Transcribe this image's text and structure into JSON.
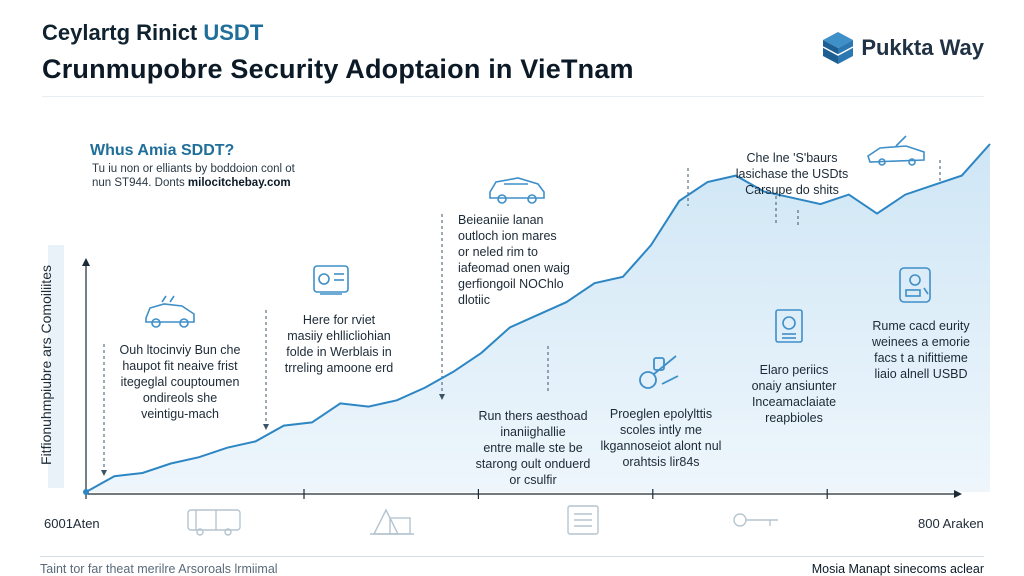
{
  "header": {
    "title_line1_prefix": "Ceylartg Rinict ",
    "title_line1_accent": "USDT",
    "title_line2": "Crunmupobre Security Adoptaion in VieTnam",
    "logo_text": "Pukkta Way"
  },
  "intro": {
    "title": "Whus Amia SDDT?",
    "line1": "Tu iu non or elliants by boddoion conl ot",
    "line2_prefix": "nun ST944. Donts ",
    "line2_bold": "milocitchebay.com"
  },
  "annotations": {
    "a1": [
      "Ouh ltocinviy Bun che",
      "haupot fit neaive frist",
      "itegeglal couptoumen",
      "ondireols she",
      "veintigu-mach"
    ],
    "a2": [
      "Here for rviet",
      "masiiy ehllicliohian",
      "folde in Werblais in",
      "trreling amoone erd"
    ],
    "a3": [
      "Beieaniie lanan",
      "outloch ion mares",
      "or neled rim to",
      "iafeomad onen waig",
      "gerfiongoil NOChlo",
      "dlotiic"
    ],
    "a4": [
      "Che lne 'S'baurs",
      "lasichase the USDts",
      "Carsupe do shits"
    ],
    "a5": [
      "Run thers aesthoad",
      "inaniighallie",
      "entre malle ste be",
      "starong oult onduerd",
      "or csulfir"
    ],
    "a6": [
      "Proeglen epolylttis",
      "scoles intly me",
      "lkgannoseiot alont nul",
      "orahtsis lir84s"
    ],
    "a7": [
      "Elaro periics",
      "onaiy ansiunter",
      "Inceamaclaiate",
      "reapbioles"
    ],
    "a8": [
      "Rume cacd eurity",
      "weinees a emorie",
      "facs t a nifittieme",
      "liaio alnell USBD"
    ]
  },
  "axis": {
    "y_label": "Fitfionuhmpiubre ars Comoiliites",
    "x_start_label": "6001Aten",
    "x_end_label": "800 Araken"
  },
  "footer": {
    "left": "Taint tor far theat merilre Arsoroals lrmiimal",
    "right": "Mosia Manapt sinecoms aclear"
  },
  "colors": {
    "line": "#2d86c4",
    "area_top": "#cfe6f5",
    "area_bottom": "#eef6fc",
    "icon": "#3f8fc9",
    "axis": "#1c2a36"
  },
  "chart_data": {
    "type": "area",
    "title": "Crunmupobre Security Adoptaion in VieTnam",
    "xlabel": "",
    "ylabel": "Fitfionuhmpiubre ars Comoiliites",
    "x_range_labels": [
      "6001Aten",
      "800 Araken"
    ],
    "grid": false,
    "series": [
      {
        "values": [
          0,
          5,
          6,
          9,
          11,
          14,
          16,
          21,
          22,
          28,
          27,
          29,
          33,
          38,
          44,
          52,
          56,
          60,
          66,
          68,
          78,
          92,
          98,
          100,
          95,
          93,
          91,
          94,
          88,
          94,
          97,
          100,
          110
        ]
      }
    ]
  }
}
